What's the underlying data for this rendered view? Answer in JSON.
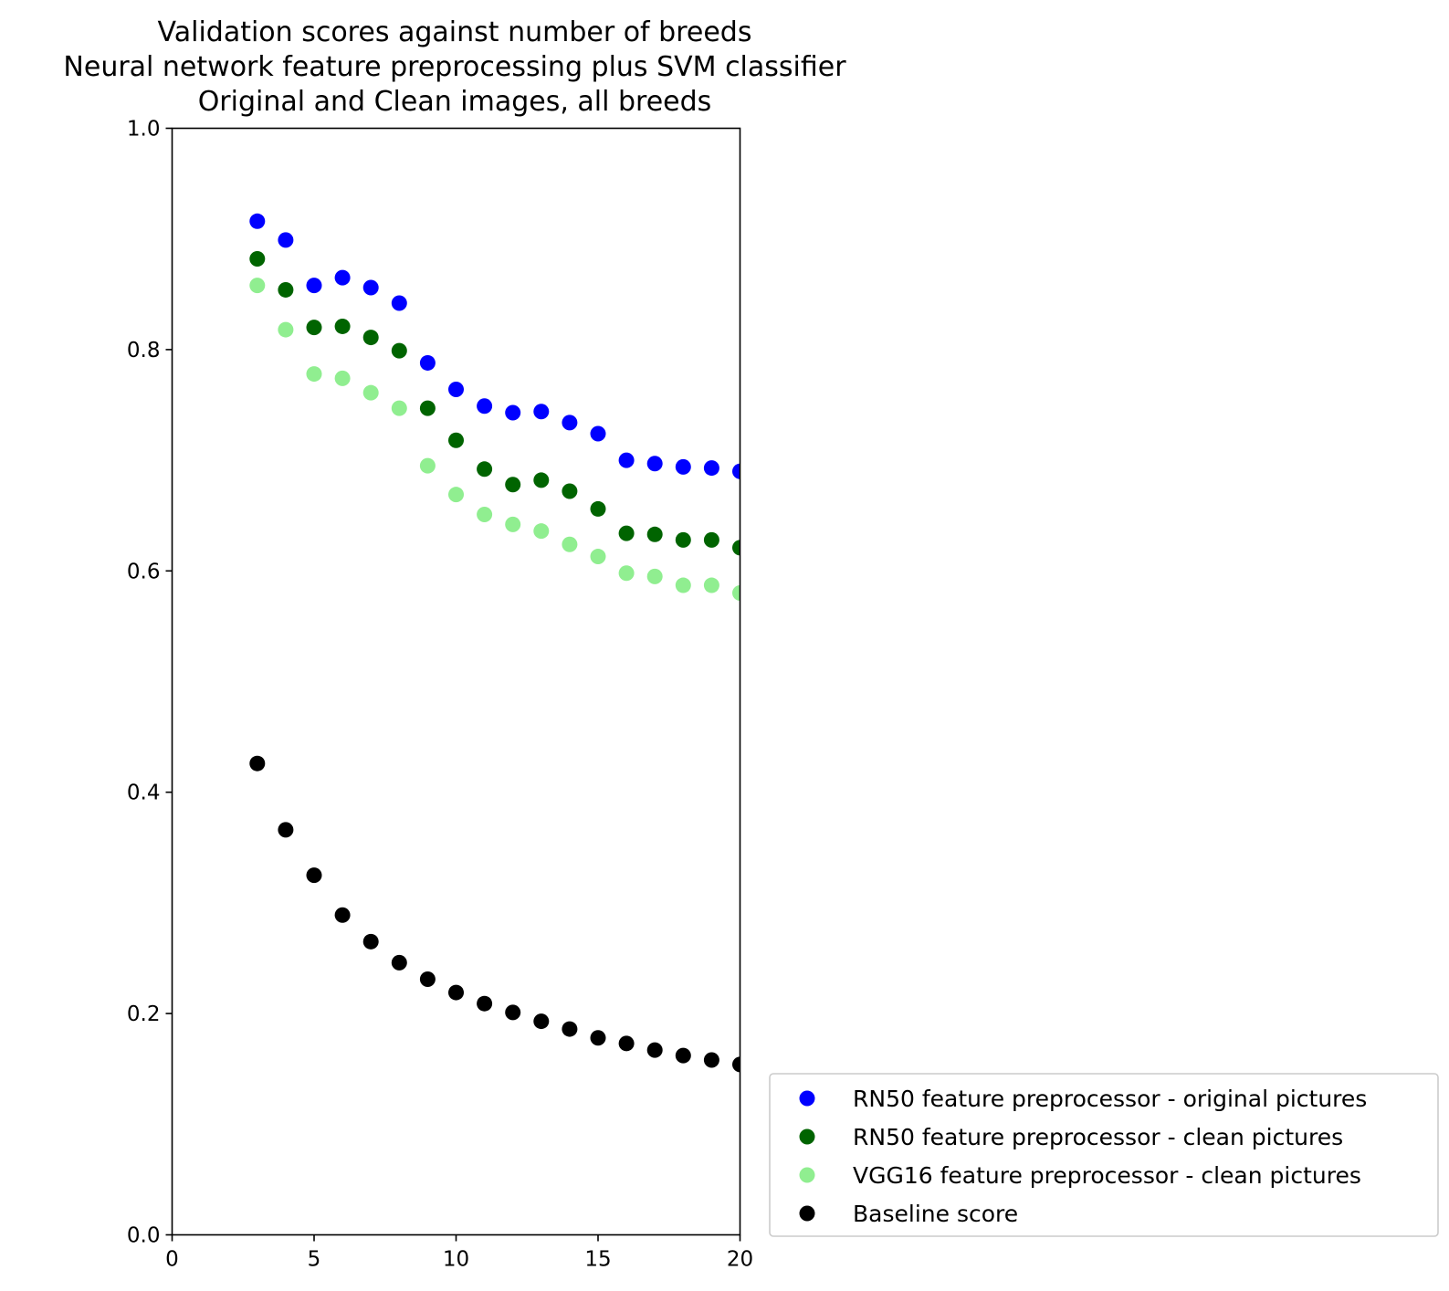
{
  "chart_data": {
    "type": "scatter",
    "title": [
      "Validation scores against number of breeds",
      "Neural network feature preprocessing plus SVM classifier",
      "Original and Clean images, all breeds"
    ],
    "xlabel": "",
    "ylabel": "",
    "xlim": [
      0,
      20
    ],
    "ylim": [
      0.0,
      1.0
    ],
    "xticks": [
      "0",
      "5",
      "10",
      "15",
      "20"
    ],
    "yticks": [
      "0.0",
      "0.2",
      "0.4",
      "0.6",
      "0.8",
      "1.0"
    ],
    "grid": false,
    "legend_position": "lower-right-outside",
    "x": [
      3,
      4,
      5,
      6,
      7,
      8,
      9,
      10,
      11,
      12,
      13,
      14,
      15,
      16,
      17,
      18,
      19,
      20
    ],
    "series": [
      {
        "name": "RN50 feature preprocessor - original pictures",
        "color": "#0000ff",
        "values": [
          0.916,
          0.899,
          0.858,
          0.865,
          0.856,
          0.842,
          0.788,
          0.764,
          0.749,
          0.743,
          0.744,
          0.734,
          0.724,
          0.7,
          0.697,
          0.694,
          0.693,
          0.69
        ]
      },
      {
        "name": "RN50 feature preprocessor - clean pictures",
        "color": "#006400",
        "values": [
          0.882,
          0.854,
          0.82,
          0.821,
          0.811,
          0.799,
          0.747,
          0.718,
          0.692,
          0.678,
          0.682,
          0.672,
          0.656,
          0.634,
          0.633,
          0.628,
          0.628,
          0.621
        ]
      },
      {
        "name": "VGG16 feature preprocessor - clean pictures",
        "color": "#90ee90",
        "values": [
          0.858,
          0.818,
          0.778,
          0.774,
          0.761,
          0.747,
          0.695,
          0.669,
          0.651,
          0.642,
          0.636,
          0.624,
          0.613,
          0.598,
          0.595,
          0.587,
          0.587,
          0.58
        ]
      },
      {
        "name": "Baseline score",
        "color": "#000000",
        "values": [
          0.426,
          0.366,
          0.325,
          0.289,
          0.265,
          0.246,
          0.231,
          0.219,
          0.209,
          0.201,
          0.193,
          0.186,
          0.178,
          0.173,
          0.167,
          0.162,
          0.158,
          0.154
        ]
      }
    ]
  }
}
